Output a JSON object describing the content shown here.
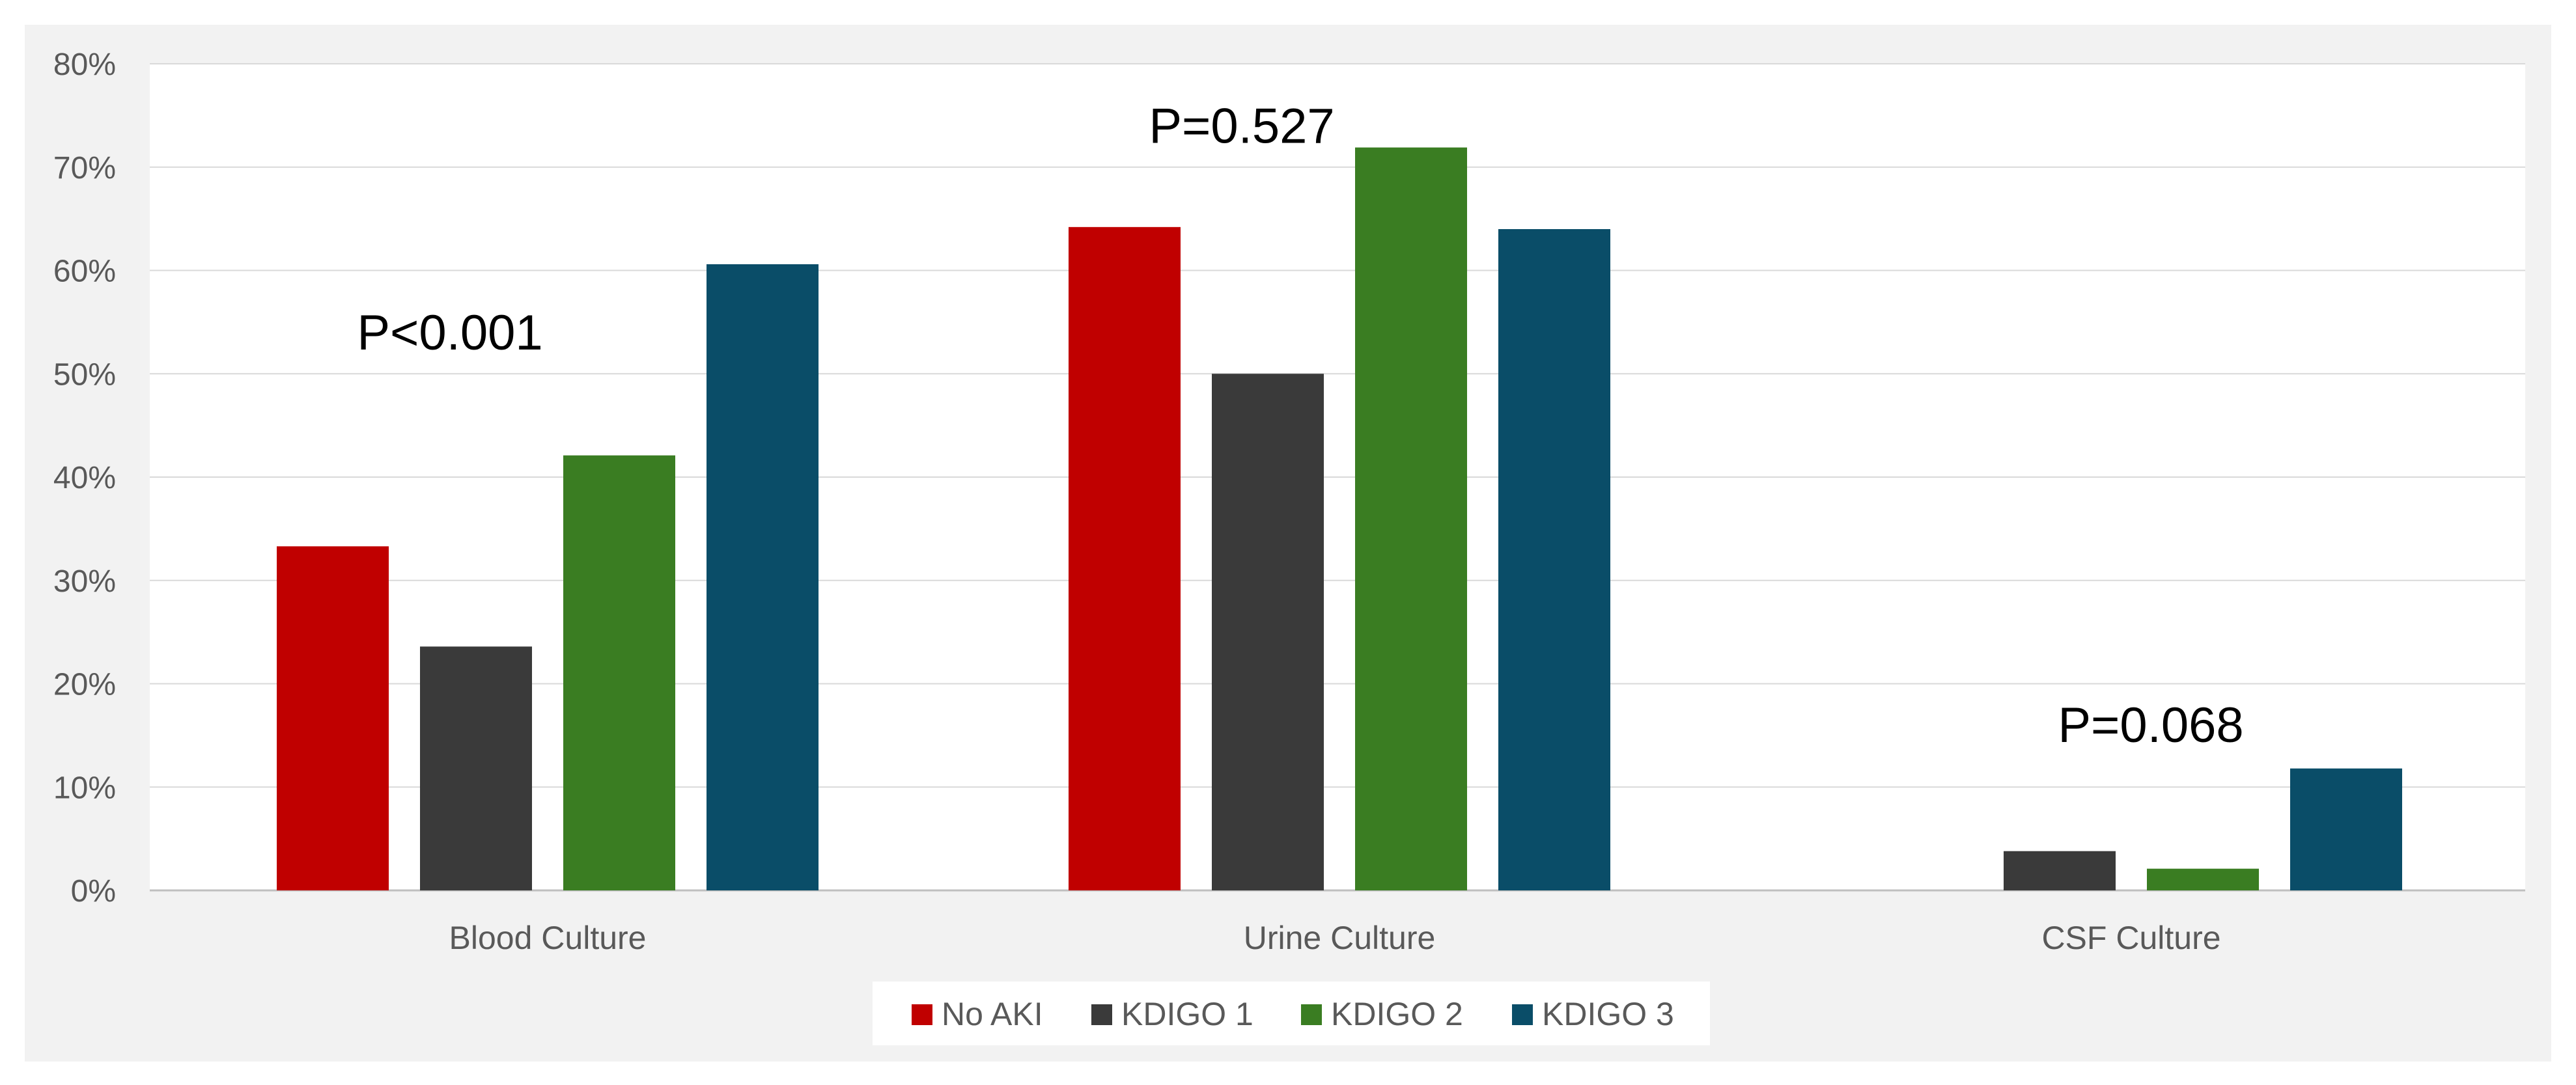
{
  "chart_data": {
    "type": "bar",
    "categories": [
      "Blood Culture",
      "Urine Culture",
      "CSF Culture"
    ],
    "series": [
      {
        "name": "No AKI",
        "color": "#c00000",
        "values": [
          33.3,
          64.2,
          0
        ]
      },
      {
        "name": "KDIGO 1",
        "color": "#3a3a3a",
        "values": [
          23.6,
          50.0,
          3.8
        ]
      },
      {
        "name": "KDIGO 2",
        "color": "#3a7d22",
        "values": [
          42.1,
          71.9,
          2.1
        ]
      },
      {
        "name": "KDIGO 3",
        "color": "#0a4d68",
        "values": [
          60.6,
          64.0,
          11.8
        ]
      }
    ],
    "ylim": [
      0,
      80
    ],
    "yticks": [
      0,
      10,
      20,
      30,
      40,
      50,
      60,
      70,
      80
    ],
    "ytick_labels": [
      "0%",
      "10%",
      "20%",
      "30%",
      "40%",
      "50%",
      "60%",
      "70%",
      "80%"
    ],
    "annotations": [
      {
        "text": "P<0.001",
        "category": "Blood Culture",
        "y": 54
      },
      {
        "text": "P=0.527",
        "category": "Urine Culture",
        "y": 74
      },
      {
        "text": "P=0.068",
        "category": "CSF Culture",
        "y": 16
      }
    ],
    "grid": true,
    "legend_position": "bottom-center",
    "title": "",
    "xlabel": "",
    "ylabel": ""
  }
}
